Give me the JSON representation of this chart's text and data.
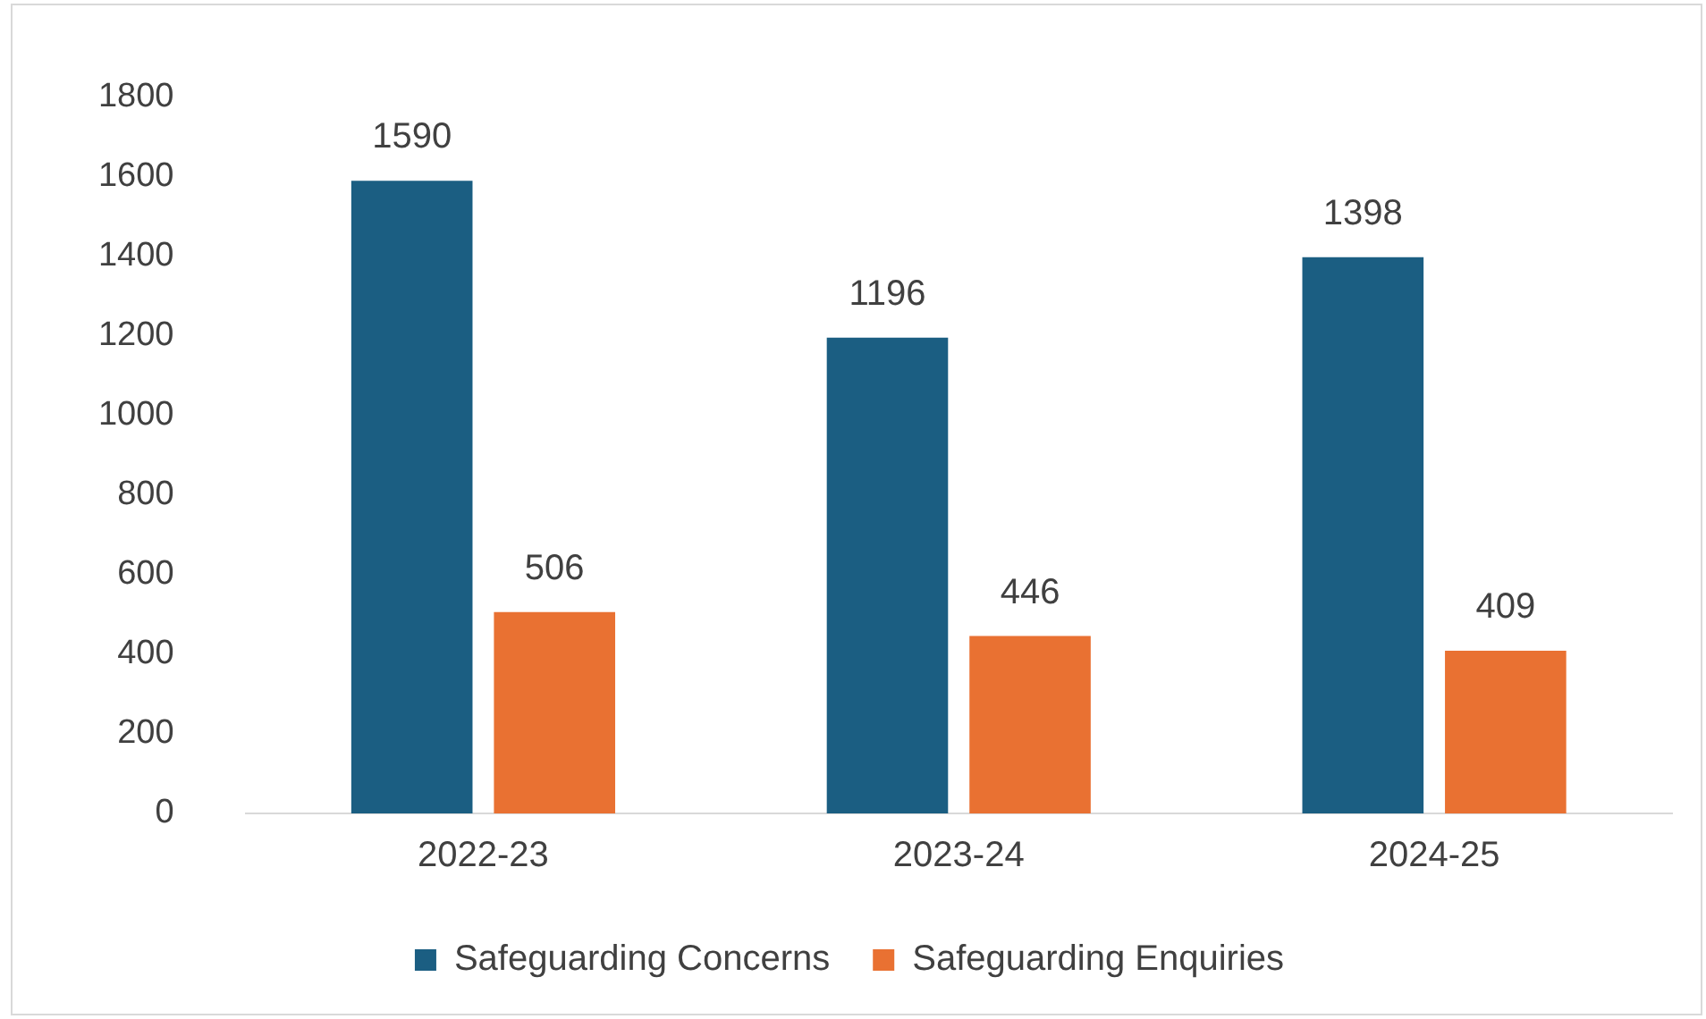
{
  "chart_data": {
    "type": "bar",
    "categories": [
      "2022-23",
      "2023-24",
      "2024-25"
    ],
    "series": [
      {
        "name": "Safeguarding Concerns",
        "color": "#1b5e82",
        "values": [
          1590,
          1196,
          1398
        ]
      },
      {
        "name": "Safeguarding Enquiries",
        "color": "#e97132",
        "values": [
          506,
          446,
          409
        ]
      }
    ],
    "ylim": [
      0,
      1800
    ],
    "yticks": [
      0,
      200,
      400,
      600,
      800,
      1000,
      1200,
      1400,
      1600,
      1800
    ],
    "grid": false,
    "legend": "bottom",
    "data_labels": true
  }
}
